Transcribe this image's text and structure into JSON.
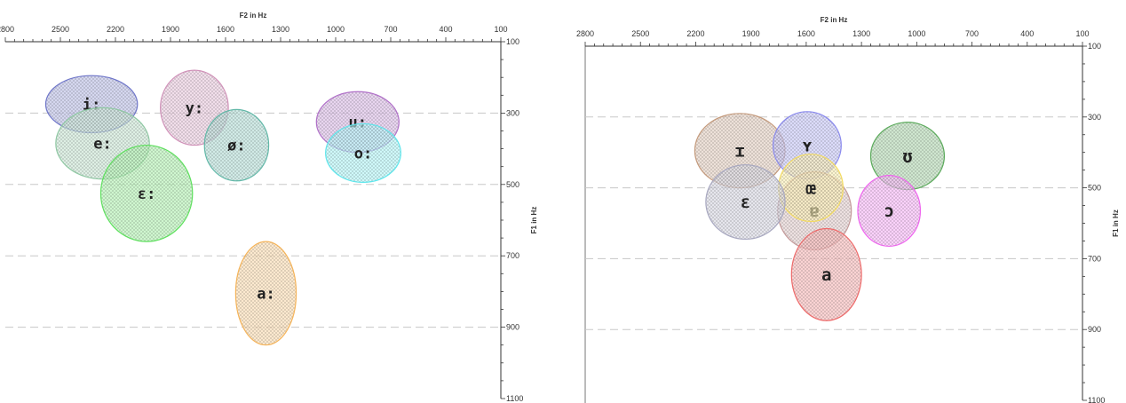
{
  "chart_data": [
    {
      "type": "scatter",
      "xlabel": "F2 in Hz",
      "ylabel": "F1 in Hz",
      "xlim": [
        2800,
        100
      ],
      "ylim": [
        1100,
        100
      ],
      "x_ticks": [
        2800,
        2500,
        2200,
        1900,
        1600,
        1300,
        1000,
        700,
        400,
        100
      ],
      "y_ticks": [
        100,
        300,
        500,
        700,
        900,
        1100
      ],
      "grid": "dashed horizontal at 300, 500, 700, 900",
      "vowels": [
        {
          "label": "i:",
          "f2": 2330,
          "f1": 275,
          "f2_spread": 250,
          "f1_spread": 80,
          "color": "#6f76c9"
        },
        {
          "label": "y:",
          "f2": 1770,
          "f1": 285,
          "f2_spread": 185,
          "f1_spread": 105,
          "color": "#d090b8"
        },
        {
          "label": "u:",
          "f2": 880,
          "f1": 325,
          "f2_spread": 225,
          "f1_spread": 85,
          "color": "#b070c8"
        },
        {
          "label": "e:",
          "f2": 2270,
          "f1": 385,
          "f2_spread": 255,
          "f1_spread": 100,
          "color": "#8fc8a3"
        },
        {
          "label": "ø:",
          "f2": 1540,
          "f1": 390,
          "f2_spread": 175,
          "f1_spread": 100,
          "color": "#62b8a8"
        },
        {
          "label": "o:",
          "f2": 850,
          "f1": 412,
          "f2_spread": 205,
          "f1_spread": 82,
          "color": "#5ee6ec"
        },
        {
          "label": "ɛ:",
          "f2": 2030,
          "f1": 525,
          "f2_spread": 250,
          "f1_spread": 135,
          "color": "#5ee05e"
        },
        {
          "label": "a:",
          "f2": 1380,
          "f1": 805,
          "f2_spread": 165,
          "f1_spread": 145,
          "color": "#f5b45a"
        }
      ]
    },
    {
      "type": "scatter",
      "xlabel": "F2 in Hz",
      "ylabel": "F1 in Hz",
      "xlim": [
        2800,
        100
      ],
      "ylim": [
        1100,
        100
      ],
      "x_ticks": [
        2800,
        2500,
        2200,
        1900,
        1600,
        1300,
        1000,
        700,
        400,
        100
      ],
      "y_ticks": [
        100,
        300,
        500,
        700,
        900,
        1100
      ],
      "grid": "dashed horizontal at 300, 500, 700, 900",
      "vowels": [
        {
          "label": "ɪ",
          "f2": 1960,
          "f1": 395,
          "f2_spread": 245,
          "f1_spread": 105,
          "color": "#c49a7c"
        },
        {
          "label": "ʏ",
          "f2": 1595,
          "f1": 380,
          "f2_spread": 185,
          "f1_spread": 95,
          "color": "#8888ee"
        },
        {
          "label": "ʊ",
          "f2": 1050,
          "f1": 410,
          "f2_spread": 200,
          "f1_spread": 95,
          "color": "#5aaa5a"
        },
        {
          "label": "ɐ",
          "f2": 1555,
          "f1": 565,
          "f2_spread": 200,
          "f1_spread": 110,
          "color": "#c49a9a"
        },
        {
          "label": "œ",
          "f2": 1575,
          "f1": 500,
          "f2_spread": 175,
          "f1_spread": 95,
          "color": "#f4dc62"
        },
        {
          "label": "ɛ",
          "f2": 1930,
          "f1": 540,
          "f2_spread": 215,
          "f1_spread": 105,
          "color": "#a8a8c0"
        },
        {
          "label": "ɔ",
          "f2": 1150,
          "f1": 565,
          "f2_spread": 170,
          "f1_spread": 100,
          "color": "#ee66ee"
        },
        {
          "label": "a",
          "f2": 1490,
          "f1": 745,
          "f2_spread": 190,
          "f1_spread": 130,
          "color": "#ee6a6a"
        }
      ]
    }
  ]
}
